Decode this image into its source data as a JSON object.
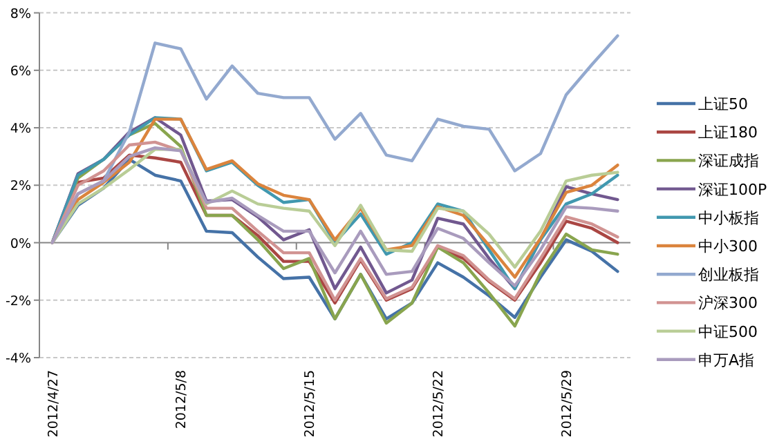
{
  "chart_data": {
    "type": "line",
    "categories": [
      "2012/4/27",
      null,
      null,
      null,
      null,
      "2012/5/8",
      null,
      null,
      null,
      null,
      "2012/5/15",
      null,
      null,
      null,
      null,
      "2012/5/22",
      null,
      null,
      null,
      null,
      "2012/5/29",
      null,
      null
    ],
    "ylim": [
      -4,
      8
    ],
    "yticks": [
      {
        "value": -4,
        "label": "-4%"
      },
      {
        "value": -2,
        "label": "-2%"
      },
      {
        "value": 0,
        "label": "0%"
      },
      {
        "value": 2,
        "label": "2%"
      },
      {
        "value": 4,
        "label": "4%"
      },
      {
        "value": 6,
        "label": "6%"
      },
      {
        "value": 8,
        "label": "8%"
      }
    ],
    "grid": "y",
    "legend": "right",
    "series": [
      {
        "name": "上证50",
        "color": "#4572a7",
        "values": [
          0,
          1.3,
          1.9,
          2.9,
          2.35,
          2.15,
          0.4,
          0.35,
          -0.5,
          -1.25,
          -1.2,
          -2.65,
          -1.1,
          -2.65,
          -2.1,
          -0.7,
          -1.2,
          -1.85,
          -2.6,
          -1.2,
          0.1,
          -0.3,
          -1.0
        ]
      },
      {
        "name": "上证180",
        "color": "#aa4643",
        "values": [
          0,
          2.1,
          2.25,
          3.05,
          2.95,
          2.8,
          0.95,
          0.95,
          0.25,
          -0.65,
          -0.65,
          -2.1,
          -0.6,
          -2.0,
          -1.6,
          -0.15,
          -0.55,
          -1.35,
          -2.0,
          -0.7,
          0.75,
          0.5,
          0.0
        ]
      },
      {
        "name": "深证成指",
        "color": "#89a54e",
        "values": [
          0,
          2.25,
          2.9,
          3.75,
          4.15,
          3.35,
          0.95,
          0.95,
          0.1,
          -0.9,
          -0.55,
          -2.65,
          -1.1,
          -2.8,
          -2.1,
          -0.15,
          -0.7,
          -1.75,
          -2.9,
          -1.05,
          0.3,
          -0.25,
          -0.4
        ]
      },
      {
        "name": "深证100P",
        "color": "#71588f",
        "values": [
          0,
          2.4,
          2.9,
          3.85,
          4.35,
          3.75,
          1.45,
          1.5,
          0.9,
          0.1,
          0.45,
          -1.6,
          -0.15,
          -1.75,
          -1.3,
          0.85,
          0.65,
          -0.55,
          -1.6,
          0.1,
          1.95,
          1.7,
          1.5
        ]
      },
      {
        "name": "中小板指",
        "color": "#4198af",
        "values": [
          0,
          2.35,
          2.9,
          3.75,
          4.35,
          4.3,
          2.5,
          2.8,
          2.0,
          1.4,
          1.5,
          0.0,
          1.0,
          -0.4,
          0.0,
          1.35,
          1.1,
          -0.25,
          -1.6,
          0.1,
          1.35,
          1.7,
          2.35
        ]
      },
      {
        "name": "中小300",
        "color": "#db843d",
        "values": [
          0,
          1.5,
          2.1,
          2.8,
          4.3,
          4.3,
          2.55,
          2.85,
          2.05,
          1.65,
          1.5,
          0.1,
          1.2,
          -0.25,
          -0.1,
          1.25,
          0.95,
          -0.1,
          -1.2,
          0.15,
          1.75,
          2.0,
          2.7
        ]
      },
      {
        "name": "创业板指",
        "color": "#93a9cf",
        "values": [
          0,
          1.7,
          2.15,
          3.85,
          6.95,
          6.75,
          5.0,
          6.15,
          5.2,
          5.05,
          5.05,
          3.6,
          4.5,
          3.05,
          2.85,
          4.3,
          4.05,
          3.95,
          2.5,
          3.1,
          5.15,
          6.2,
          7.2
        ]
      },
      {
        "name": "沪深300",
        "color": "#d19392",
        "values": [
          0,
          2.0,
          2.5,
          3.4,
          3.5,
          3.2,
          1.2,
          1.2,
          0.4,
          -0.35,
          -0.35,
          -2.0,
          -0.55,
          -1.95,
          -1.55,
          -0.1,
          -0.45,
          -1.3,
          -1.95,
          -0.55,
          0.9,
          0.65,
          0.2
        ]
      },
      {
        "name": "中证500",
        "color": "#b9cd96",
        "values": [
          0,
          1.35,
          1.9,
          2.55,
          3.25,
          3.25,
          1.35,
          1.8,
          1.35,
          1.2,
          1.1,
          -0.1,
          1.3,
          -0.25,
          -0.3,
          1.2,
          1.1,
          0.3,
          -0.85,
          0.4,
          2.15,
          2.35,
          2.45
        ]
      },
      {
        "name": "申万A指",
        "color": "#a99bbd",
        "values": [
          0,
          1.7,
          2.15,
          3.0,
          3.3,
          3.2,
          1.4,
          1.55,
          0.95,
          0.4,
          0.4,
          -1.05,
          0.4,
          -1.1,
          -1.0,
          0.5,
          0.15,
          -0.7,
          -1.5,
          -0.25,
          1.25,
          1.2,
          1.1
        ]
      }
    ]
  }
}
